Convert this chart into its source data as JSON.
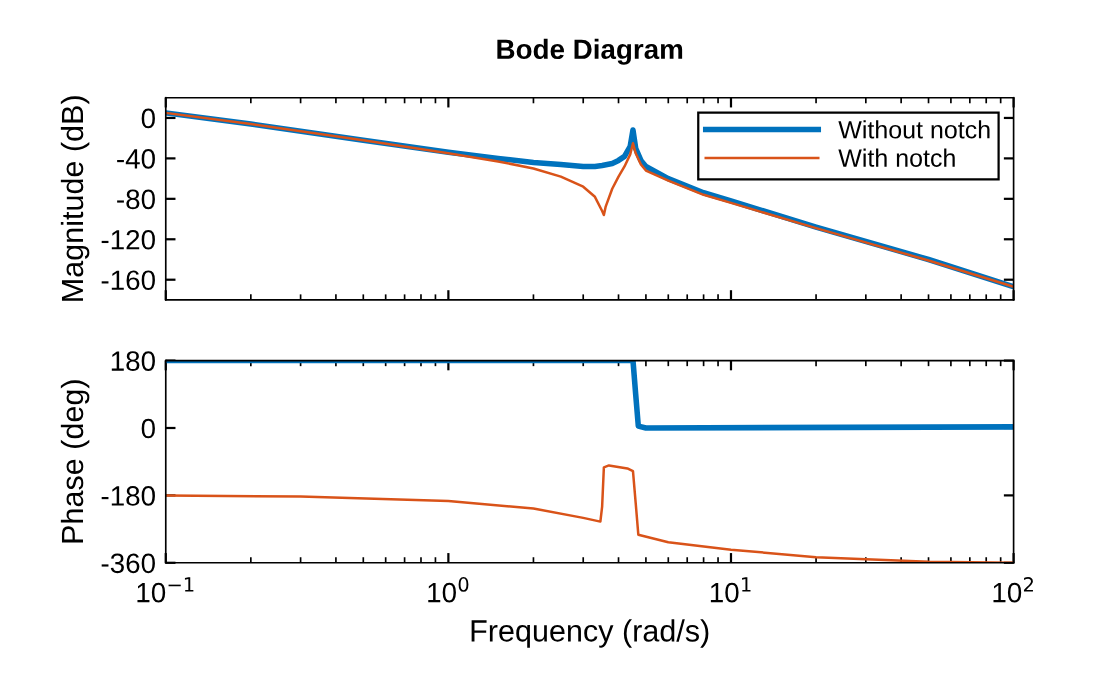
{
  "chart_data": [
    {
      "type": "line",
      "title": "Bode Diagram",
      "ylabel": "Magnitude (dB)",
      "log": "x",
      "xlim": [
        0.1,
        100
      ],
      "xticks": [
        {
          "value": 0.1,
          "label": null
        },
        {
          "value": 1,
          "label": null
        },
        {
          "value": 10,
          "label": null
        },
        {
          "value": 100,
          "label": null
        }
      ],
      "ylim": [
        -180,
        20
      ],
      "yticks": [
        -160,
        -120,
        -80,
        -40,
        0
      ],
      "tick_labels": "y",
      "grid": false,
      "legend": "top right",
      "line_style": "solid",
      "marker": "none",
      "series": [
        {
          "name": "Without notch",
          "color": "#0072bd",
          "x": [
            0.1,
            0.2,
            0.5,
            1,
            1.5,
            2,
            2.5,
            3,
            3.3,
            3.5,
            3.8,
            4,
            4.2,
            4.4,
            4.5,
            4.6,
            4.8,
            5,
            6,
            8,
            10,
            20,
            50,
            100
          ],
          "values": [
            5,
            -6,
            -22,
            -34,
            -40,
            -44,
            -46,
            -48,
            -48,
            -47,
            -45,
            -42,
            -38,
            -28,
            -12,
            -30,
            -42,
            -48,
            -60,
            -74,
            -82,
            -108,
            -140,
            -167
          ]
        },
        {
          "name": "With notch",
          "color": "#d95319",
          "x": [
            0.1,
            0.2,
            0.5,
            1,
            1.5,
            2,
            2.5,
            3,
            3.3,
            3.5,
            3.55,
            3.6,
            3.8,
            4,
            4.2,
            4.4,
            4.5,
            4.6,
            4.8,
            5,
            6,
            8,
            10,
            20,
            50,
            100
          ],
          "values": [
            5,
            -6,
            -22,
            -35,
            -43,
            -50,
            -58,
            -68,
            -78,
            -92,
            -96,
            -88,
            -70,
            -58,
            -48,
            -36,
            -25,
            -35,
            -46,
            -52,
            -62,
            -76,
            -84,
            -109,
            -141,
            -167
          ]
        }
      ]
    },
    {
      "type": "line",
      "xlabel": "Frequency (rad/s)",
      "ylabel": "Phase (deg)",
      "log": "x",
      "xlim": [
        0.1,
        100
      ],
      "xticks": [
        {
          "value": 0.1,
          "label": "10$^{−1}$"
        },
        {
          "value": 1,
          "label": "10$^{0}$"
        },
        {
          "value": 10,
          "label": "10$^{1}$"
        },
        {
          "value": 100,
          "label": "10$^{2}$"
        }
      ],
      "ylim": [
        -360,
        180
      ],
      "yticks": [
        -360,
        -180,
        0,
        180
      ],
      "grid": false,
      "line_style": "solid",
      "marker": "none",
      "series": [
        {
          "color": "#0072bd",
          "x": [
            0.1,
            4.5,
            4.6,
            4.7,
            5,
            100
          ],
          "values": [
            180,
            180,
            90,
            5,
            0,
            3
          ]
        },
        {
          "color": "#d95319",
          "x": [
            0.1,
            0.3,
            1,
            2,
            3,
            3.45,
            3.5,
            3.55,
            3.7,
            4.3,
            4.5,
            4.6,
            4.7,
            6,
            10,
            20,
            50,
            100
          ],
          "values": [
            -180,
            -183,
            -195,
            -215,
            -240,
            -250,
            -210,
            -105,
            -100,
            -108,
            -115,
            -200,
            -285,
            -305,
            -325,
            -345,
            -357,
            -360
          ]
        }
      ]
    }
  ]
}
